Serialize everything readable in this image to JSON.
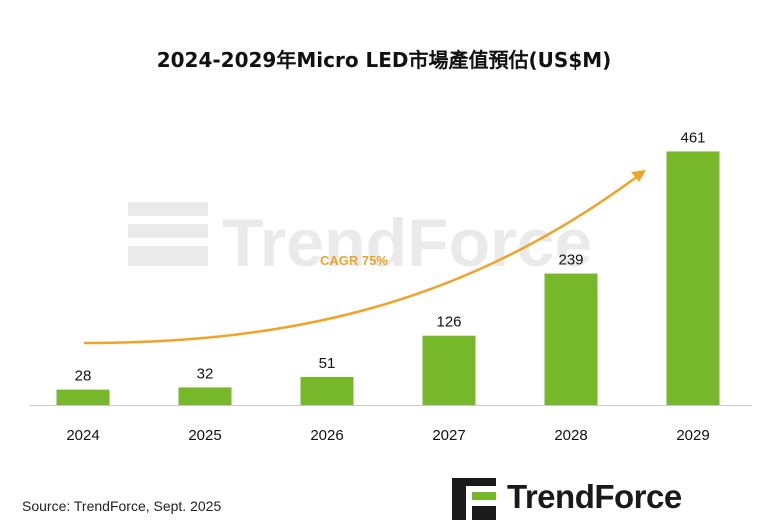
{
  "chart_data": {
    "type": "bar",
    "title": "2024-2029年Micro LED市場產值預估(US$M)",
    "categories": [
      "2024",
      "2025",
      "2026",
      "2027",
      "2028",
      "2029"
    ],
    "values": [
      28,
      32,
      51,
      126,
      239,
      461
    ],
    "data_labels": [
      "28",
      "32",
      "51",
      "126",
      "239",
      "461"
    ],
    "annotation": "CAGR 75%",
    "ylim": [
      0,
      500
    ],
    "grid": false,
    "legend": "none",
    "colors": {
      "bar": "#76b82a",
      "trend_arrow": "#f0a427",
      "axis": "#c8c8c8"
    }
  },
  "watermark": {
    "text": "TrendForce"
  },
  "footer": {
    "source": "Source: TrendForce, Sept. 2025",
    "logo_text": "TrendForce"
  }
}
